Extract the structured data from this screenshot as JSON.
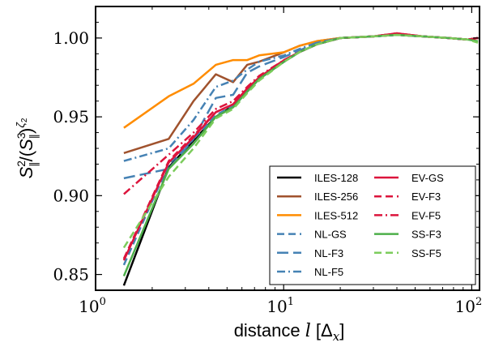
{
  "chart_data": {
    "type": "line",
    "xlabel": "distance l [Δx]",
    "ylabel": "S∥²/(S∥³)^{ζ₂}",
    "x_scale": "log",
    "xlim": [
      1,
      110
    ],
    "ylim": [
      0.84,
      1.02
    ],
    "grid": false,
    "legend_position": "lower-right",
    "x_ticks": [
      {
        "value": 1,
        "base": "10",
        "exp": "0"
      },
      {
        "value": 10,
        "base": "10",
        "exp": "1"
      },
      {
        "value": 100,
        "base": "10",
        "exp": "2"
      }
    ],
    "y_ticks": [
      {
        "value": 0.85,
        "label": "0.85"
      },
      {
        "value": 0.9,
        "label": "0.90"
      },
      {
        "value": 0.95,
        "label": "0.95"
      },
      {
        "value": 1.0,
        "label": "1.00"
      }
    ],
    "x": [
      1.414,
      2.449,
      3.317,
      4.359,
      5.385,
      6.403,
      7.416,
      10.05,
      12.1,
      15.0,
      20.0,
      30.0,
      40.0,
      55.0,
      75.0,
      95.0,
      108.0
    ],
    "series": [
      {
        "name": "ILES-128",
        "color": "#000000",
        "dash": "solid",
        "values": [
          0.843,
          0.918,
          0.935,
          0.95,
          0.957,
          0.966,
          0.974,
          0.985,
          0.991,
          0.996,
          1.0,
          1.001,
          1.002,
          1.001,
          1.0,
          0.999,
          1.0
        ]
      },
      {
        "name": "ILES-256",
        "color": "#a0522d",
        "dash": "solid",
        "values": [
          0.927,
          0.936,
          0.96,
          0.977,
          0.972,
          0.983,
          0.985,
          0.991,
          0.995,
          0.998,
          1.0,
          1.001,
          1.002,
          1.001,
          1.0,
          0.999,
          1.0
        ]
      },
      {
        "name": "ILES-512",
        "color": "#ff8c00",
        "dash": "solid",
        "values": [
          0.943,
          0.963,
          0.971,
          0.983,
          0.986,
          0.986,
          0.989,
          0.991,
          0.995,
          0.998,
          1.0,
          1.001,
          1.002,
          1.001,
          1.0,
          0.999,
          1.0
        ]
      },
      {
        "name": "NL-GS",
        "color": "#4682b4",
        "dash": "dashed",
        "values": [
          0.856,
          0.92,
          0.936,
          0.951,
          0.957,
          0.967,
          0.975,
          0.985,
          0.991,
          0.996,
          1.0,
          1.001,
          1.002,
          1.001,
          1.0,
          0.999,
          1.0
        ]
      },
      {
        "name": "NL-F3",
        "color": "#4682b4",
        "dash": "longdash",
        "values": [
          0.911,
          0.917,
          0.936,
          0.962,
          0.964,
          0.978,
          0.982,
          0.988,
          0.992,
          0.997,
          1.0,
          1.001,
          1.002,
          1.001,
          1.0,
          0.999,
          1.0
        ]
      },
      {
        "name": "NL-F5",
        "color": "#4682b4",
        "dash": "dashdot",
        "values": [
          0.922,
          0.93,
          0.948,
          0.969,
          0.973,
          0.98,
          0.985,
          0.989,
          0.993,
          0.997,
          1.0,
          1.001,
          1.002,
          1.001,
          1.0,
          0.999,
          1.0
        ]
      },
      {
        "name": "EV-GS",
        "color": "#dc143c",
        "dash": "solid",
        "values": [
          0.859,
          0.921,
          0.937,
          0.953,
          0.958,
          0.968,
          0.975,
          0.986,
          0.991,
          0.996,
          1.0,
          1.001,
          1.003,
          1.001,
          1.0,
          0.999,
          1.0
        ]
      },
      {
        "name": "EV-F3",
        "color": "#dc143c",
        "dash": "dashed",
        "values": [
          0.86,
          0.922,
          0.938,
          0.953,
          0.958,
          0.968,
          0.975,
          0.986,
          0.991,
          0.996,
          1.0,
          1.001,
          1.003,
          1.001,
          1.0,
          0.999,
          1.0
        ]
      },
      {
        "name": "EV-F5",
        "color": "#dc143c",
        "dash": "dashdot",
        "values": [
          0.901,
          0.926,
          0.94,
          0.955,
          0.96,
          0.969,
          0.976,
          0.986,
          0.991,
          0.996,
          1.0,
          1.001,
          1.003,
          1.001,
          1.0,
          0.999,
          1.0
        ]
      },
      {
        "name": "SS-F3",
        "color": "#4daf4a",
        "dash": "solid",
        "values": [
          0.849,
          0.917,
          0.933,
          0.95,
          0.956,
          0.966,
          0.974,
          0.985,
          0.991,
          0.996,
          1.0,
          1.001,
          1.002,
          1.001,
          1.0,
          0.999,
          0.998
        ]
      },
      {
        "name": "SS-F5",
        "color": "#7ccc5c",
        "dash": "dashed",
        "values": [
          0.867,
          0.912,
          0.93,
          0.949,
          0.955,
          0.965,
          0.973,
          0.985,
          0.991,
          0.996,
          1.0,
          1.001,
          1.002,
          1.001,
          1.0,
          0.999,
          0.997
        ]
      }
    ]
  }
}
